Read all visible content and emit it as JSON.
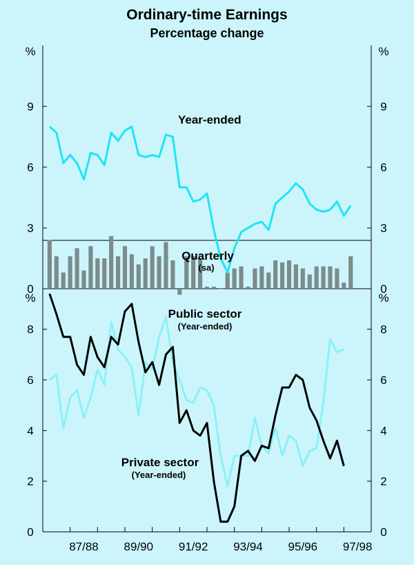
{
  "title": "Ordinary-time Earnings",
  "subtitle": "Percentage change",
  "colors": {
    "background": "#ccf5fb",
    "year_ended": "#1ee5f3",
    "quarterly": "#7c8b8b",
    "public": "#000000",
    "private": "#8bf1f8",
    "plot_bg": "#ccf5fb"
  },
  "chart_data": [
    {
      "type": "line+bar",
      "panel": "top",
      "unit_label_left": "%",
      "unit_label_right": "%",
      "ylim": [
        0,
        12
      ],
      "yticks": [
        0,
        3,
        6,
        9
      ],
      "annotations": {
        "year_ended": "Year-ended",
        "quarterly": "Quarterly",
        "quarterly_sub": "(sa)"
      },
      "x_start": 1986.25,
      "x_step": 0.25,
      "series": [
        {
          "name": "Year-ended",
          "kind": "line",
          "values": [
            8.0,
            7.7,
            6.2,
            6.6,
            6.2,
            5.4,
            6.7,
            6.6,
            6.1,
            7.7,
            7.3,
            7.8,
            8.0,
            6.6,
            6.5,
            6.6,
            6.5,
            7.6,
            7.5,
            5.0,
            5.0,
            4.3,
            4.4,
            4.7,
            2.9,
            1.5,
            0.8,
            2.0,
            2.8,
            3.0,
            3.2,
            3.3,
            2.9,
            4.2,
            4.5,
            4.8,
            5.2,
            4.9,
            4.2,
            3.9,
            3.8,
            3.9,
            4.3,
            3.6,
            4.1
          ]
        },
        {
          "name": "Quarterly (sa)",
          "kind": "bar",
          "values": [
            2.4,
            1.6,
            0.8,
            1.6,
            2.0,
            0.9,
            2.1,
            1.5,
            1.5,
            2.6,
            1.6,
            2.1,
            1.7,
            1.2,
            1.5,
            2.1,
            1.6,
            2.3,
            1.4,
            -0.3,
            1.6,
            1.6,
            1.5,
            0.1,
            0.1,
            0.0,
            0.8,
            1.0,
            1.1,
            0.1,
            1.0,
            1.1,
            0.8,
            1.4,
            1.3,
            1.4,
            1.2,
            1.0,
            0.7,
            1.1,
            1.1,
            1.1,
            1.0,
            0.3,
            1.6
          ]
        }
      ]
    },
    {
      "type": "line",
      "panel": "bottom",
      "unit_label_left": "%",
      "unit_label_right": "%",
      "ylim": [
        0,
        9.6
      ],
      "yticks": [
        0,
        2,
        4,
        6,
        8
      ],
      "xticks": [
        "87/88",
        "89/90",
        "91/92",
        "93/94",
        "95/96",
        "97/98"
      ],
      "annotations": {
        "public": "Public sector",
        "public_sub": "(Year-ended)",
        "private": "Private sector",
        "private_sub": "(Year-ended)"
      },
      "x_start": 1986.25,
      "x_step": 0.25,
      "series": [
        {
          "name": "Public sector",
          "values": [
            9.4,
            8.6,
            7.7,
            7.7,
            6.6,
            6.2,
            7.7,
            6.9,
            6.5,
            7.7,
            7.4,
            8.7,
            9.0,
            7.5,
            6.3,
            6.7,
            5.8,
            7.0,
            7.3,
            4.3,
            4.8,
            4.0,
            3.8,
            4.3,
            2.0,
            0.4,
            0.4,
            1.0,
            3.0,
            3.2,
            2.8,
            3.4,
            3.3,
            4.6,
            5.7,
            5.7,
            6.2,
            6.0,
            4.9,
            4.4,
            3.6,
            2.9,
            3.6,
            2.6
          ]
        },
        {
          "name": "Private sector",
          "values": [
            6.0,
            6.2,
            4.1,
            5.3,
            5.6,
            4.5,
            5.3,
            6.4,
            5.8,
            8.3,
            7.2,
            6.9,
            6.5,
            4.6,
            6.7,
            6.4,
            7.7,
            8.5,
            6.7,
            6.0,
            5.2,
            5.1,
            5.7,
            5.6,
            5.0,
            3.0,
            1.8,
            3.0,
            3.0,
            3.0,
            4.5,
            3.4,
            3.1,
            4.1,
            3.0,
            3.8,
            3.6,
            2.6,
            3.2,
            3.3,
            5.1,
            7.6,
            7.1,
            7.2
          ]
        }
      ]
    }
  ]
}
